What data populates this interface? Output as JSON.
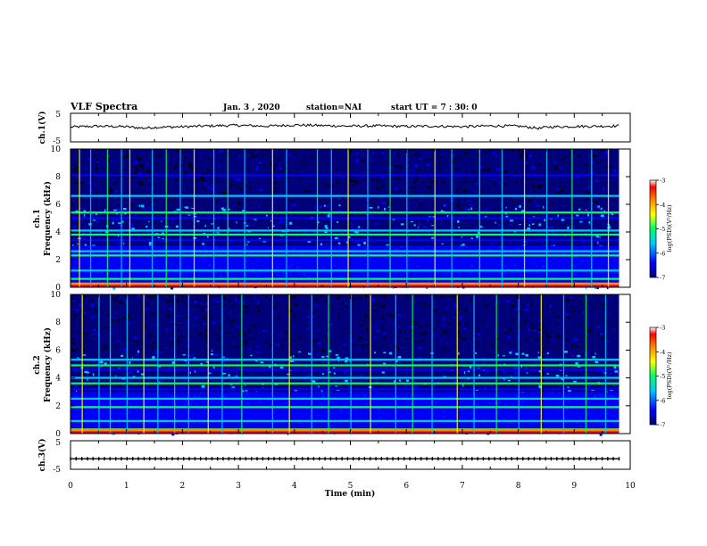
{
  "header": {
    "title": "VLF Spectra",
    "date": "Jan. 3 , 2020",
    "station": "station=NAI",
    "start_ut": "start UT = 7 : 30: 0"
  },
  "colors": {
    "spectrogram_scale": [
      "#00007a",
      "#0000ff",
      "#00c8ff",
      "#00ff66",
      "#ffff00",
      "#ff8800",
      "#ff0000",
      "#ffffff"
    ],
    "waveform": "#000000",
    "background": "#000000"
  },
  "chart_data": [
    {
      "type": "line",
      "name": "ch1-waveform",
      "ylabel": "ch.1(V)",
      "ylim": [
        -5,
        5
      ],
      "yticks": [
        "5",
        "-5"
      ],
      "x": [
        0,
        0.5,
        1,
        1.3,
        1.5,
        2,
        2.5,
        3,
        3.5,
        4,
        4.5,
        5,
        5.5,
        6,
        6.5,
        7,
        7.5,
        8,
        8.4,
        8.5,
        9,
        9.5,
        9.8
      ],
      "y": [
        0.2,
        0.5,
        0.3,
        -0.2,
        0.1,
        0.3,
        0.6,
        0.8,
        0.5,
        0.9,
        0.7,
        0.5,
        0.6,
        0.4,
        0.5,
        0.3,
        0.6,
        0.5,
        -0.3,
        0.2,
        0.4,
        0.5,
        0.6
      ]
    },
    {
      "type": "heatmap",
      "name": "ch1-spectrogram",
      "ylabel": "ch.1",
      "ylabel2": "Frequency (kHz)",
      "ylim": [
        0,
        10
      ],
      "yticks": [
        "0",
        "2",
        "4",
        "6",
        "8",
        "10"
      ],
      "colorbar": {
        "label": "log(PSD)(V²/Hz)",
        "range": [
          -7,
          -3
        ],
        "ticks": [
          "-3",
          "-4",
          "-5",
          "-6",
          "-7"
        ]
      },
      "bands_khz": [
        0.6,
        1.2,
        1.8,
        2.3,
        2.6,
        3.4,
        3.8,
        4.1,
        5.0,
        5.4,
        6.6,
        8.1
      ],
      "spikes_min": [
        0.15,
        0.35,
        0.65,
        0.9,
        1.05,
        1.45,
        1.7,
        1.95,
        2.2,
        2.55,
        2.8,
        3.1,
        3.6,
        3.85,
        4.4,
        4.65,
        4.95,
        5.3,
        5.7,
        6.0,
        6.5,
        6.8,
        7.3,
        7.7,
        8.1,
        8.5,
        8.95,
        9.3,
        9.6
      ]
    },
    {
      "type": "heatmap",
      "name": "ch2-spectrogram",
      "ylabel": "ch.2",
      "ylabel2": "Frequency (kHz)",
      "ylim": [
        0,
        10
      ],
      "yticks": [
        "0",
        "2",
        "4",
        "6",
        "8",
        "10"
      ],
      "colorbar": {
        "label": "log(PSD)(V²/Hz)",
        "range": [
          -7,
          -3
        ],
        "ticks": [
          "-3",
          "-4",
          "-5",
          "-6",
          "-7"
        ]
      },
      "bands_khz": [
        0.3,
        0.9,
        1.4,
        1.9,
        2.5,
        3.2,
        3.6,
        4.0,
        4.6,
        4.9,
        5.3
      ],
      "spikes_min": [
        0.2,
        0.5,
        0.7,
        1.0,
        1.3,
        1.55,
        1.85,
        2.1,
        2.45,
        2.7,
        3.05,
        3.6,
        3.9,
        4.3,
        4.6,
        5.0,
        5.35,
        5.8,
        6.1,
        6.45,
        6.9,
        7.2,
        7.6,
        8.0,
        8.4,
        8.8,
        9.2,
        9.55
      ]
    },
    {
      "type": "line",
      "name": "ch3-waveform",
      "ylabel": "ch.3(V)",
      "ylim": [
        -5,
        5
      ],
      "yticks": [
        "5",
        "-5"
      ],
      "x": [
        0,
        9.8
      ],
      "y": [
        -1.3,
        -1.3
      ]
    }
  ],
  "xaxis": {
    "label": "Time (min)",
    "range": [
      0,
      10
    ],
    "ticks": [
      "0",
      "1",
      "2",
      "3",
      "4",
      "5",
      "6",
      "7",
      "8",
      "9",
      "10"
    ]
  }
}
